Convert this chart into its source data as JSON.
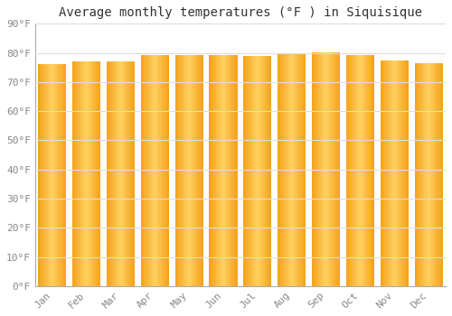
{
  "title": "Average monthly temperatures (°F ) in Siquisique",
  "months": [
    "Jan",
    "Feb",
    "Mar",
    "Apr",
    "May",
    "Jun",
    "Jul",
    "Aug",
    "Sep",
    "Oct",
    "Nov",
    "Dec"
  ],
  "values": [
    76.3,
    77.2,
    77.2,
    79.2,
    79.2,
    79.3,
    79.0,
    80.0,
    80.1,
    79.1,
    77.4,
    76.5
  ],
  "bar_color_center": "#FFD060",
  "bar_color_edge": "#F5A020",
  "background_color": "#ffffff",
  "fig_background_color": "#ffffff",
  "grid_color": "#dddddd",
  "ylim": [
    0,
    90
  ],
  "yticks": [
    0,
    10,
    20,
    30,
    40,
    50,
    60,
    70,
    80,
    90
  ],
  "ytick_labels": [
    "0°F",
    "10°F",
    "20°F",
    "30°F",
    "40°F",
    "50°F",
    "60°F",
    "70°F",
    "80°F",
    "90°F"
  ],
  "title_fontsize": 10,
  "tick_fontsize": 8,
  "font_color": "#888888",
  "bar_width": 0.82,
  "n_gradient_strips": 20
}
